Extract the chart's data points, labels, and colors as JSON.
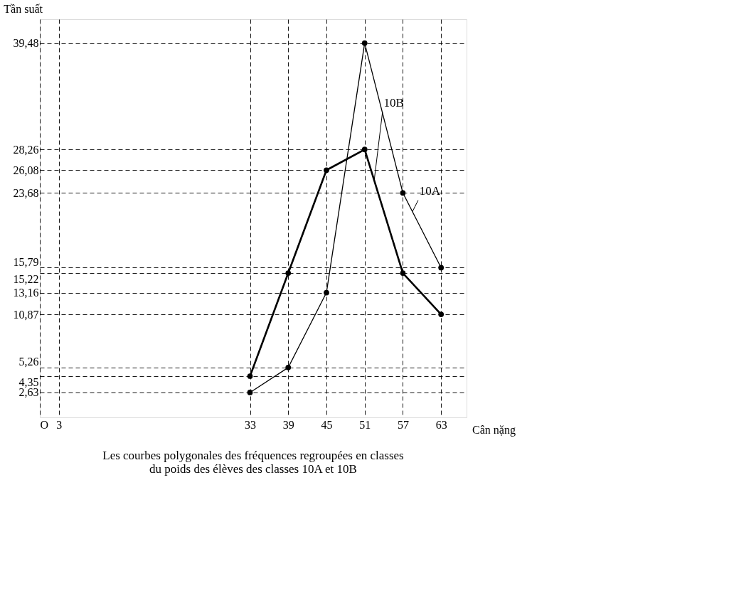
{
  "chart_data": {
    "type": "line",
    "title": "Les courbes polygonales des fréquences regroupées en classes\ndu poids des élèves des classes 10A et 10B",
    "xlabel": "Cân nặng",
    "ylabel": "Tần suất",
    "x": [
      33,
      39,
      45,
      51,
      57,
      63
    ],
    "series": [
      {
        "name": "10A",
        "color": "#000000",
        "values": [
          2.63,
          5.26,
          13.16,
          39.48,
          23.68,
          15.79
        ]
      },
      {
        "name": "10B",
        "color": "#000000",
        "values": [
          4.35,
          15.22,
          26.08,
          28.26,
          15.22,
          10.87
        ]
      }
    ],
    "xlim": [
      0,
      67
    ],
    "xticks": [
      {
        "value": 0,
        "label": "O"
      },
      3,
      33,
      39,
      45,
      51,
      57,
      63
    ],
    "ylim": [
      0,
      42
    ],
    "yticks": [
      {
        "value": 2.63,
        "label": "2,63"
      },
      {
        "value": 4.35,
        "label": "4,35"
      },
      {
        "value": 5.26,
        "label": "5,26"
      },
      {
        "value": 10.87,
        "label": "10,87"
      },
      {
        "value": 13.16,
        "label": "13,16"
      },
      {
        "value": 15.22,
        "label": "15,22"
      },
      {
        "value": 15.79,
        "label": "15,79"
      },
      {
        "value": 23.68,
        "label": "23,68"
      },
      {
        "value": 26.08,
        "label": "26,08"
      },
      {
        "value": 28.26,
        "label": "28,26"
      },
      {
        "value": 39.48,
        "label": "39,48"
      }
    ],
    "grid": true,
    "marker": "circle",
    "line_style": "solid"
  }
}
